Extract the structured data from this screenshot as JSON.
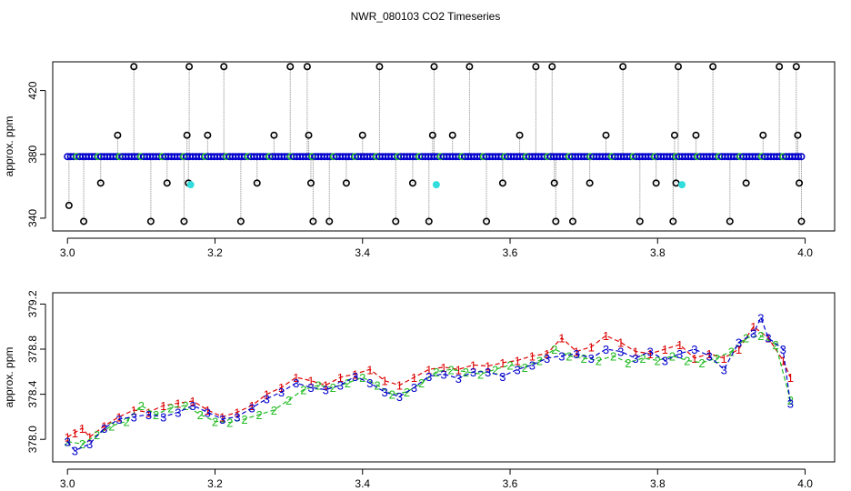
{
  "title": "NWR_080103  CO2 Timeseries",
  "chart_data": [
    {
      "type": "scatter",
      "ylabel": "approx. ppm",
      "xlim": [
        2.98,
        4.04
      ],
      "ylim": [
        332,
        438
      ],
      "xticks": [
        3.0,
        3.2,
        3.4,
        3.6,
        3.8,
        4.0
      ],
      "yticks": [
        340,
        380,
        420
      ],
      "tick_labels_x": [
        "3.0",
        "3.2",
        "3.4",
        "3.6",
        "3.8",
        "4.0"
      ],
      "tick_labels_y": [
        "340",
        "380",
        "420"
      ],
      "baseline": 378.6,
      "colors": {
        "baseline": "#0000cc",
        "accent": "#22bb22",
        "highlight": "#33dddd",
        "spike": "#000000",
        "connector": "#888888"
      },
      "spikes": [
        {
          "x": 3.002,
          "y": 348
        },
        {
          "x": 3.022,
          "y": 338
        },
        {
          "x": 3.045,
          "y": 362
        },
        {
          "x": 3.068,
          "y": 392
        },
        {
          "x": 3.09,
          "y": 435
        },
        {
          "x": 3.113,
          "y": 338
        },
        {
          "x": 3.135,
          "y": 362
        },
        {
          "x": 3.158,
          "y": 338
        },
        {
          "x": 3.162,
          "y": 392
        },
        {
          "x": 3.164,
          "y": 362
        },
        {
          "x": 3.165,
          "y": 435
        },
        {
          "x": 3.19,
          "y": 392
        },
        {
          "x": 3.212,
          "y": 435
        },
        {
          "x": 3.235,
          "y": 338
        },
        {
          "x": 3.257,
          "y": 362
        },
        {
          "x": 3.28,
          "y": 392
        },
        {
          "x": 3.302,
          "y": 435
        },
        {
          "x": 3.325,
          "y": 435
        },
        {
          "x": 3.327,
          "y": 392
        },
        {
          "x": 3.33,
          "y": 362
        },
        {
          "x": 3.333,
          "y": 338
        },
        {
          "x": 3.355,
          "y": 338
        },
        {
          "x": 3.378,
          "y": 362
        },
        {
          "x": 3.4,
          "y": 392
        },
        {
          "x": 3.423,
          "y": 435
        },
        {
          "x": 3.445,
          "y": 338
        },
        {
          "x": 3.468,
          "y": 362
        },
        {
          "x": 3.49,
          "y": 338
        },
        {
          "x": 3.495,
          "y": 392
        },
        {
          "x": 3.497,
          "y": 435
        },
        {
          "x": 3.522,
          "y": 392
        },
        {
          "x": 3.545,
          "y": 435
        },
        {
          "x": 3.568,
          "y": 338
        },
        {
          "x": 3.59,
          "y": 362
        },
        {
          "x": 3.613,
          "y": 392
        },
        {
          "x": 3.635,
          "y": 435
        },
        {
          "x": 3.657,
          "y": 435
        },
        {
          "x": 3.66,
          "y": 362
        },
        {
          "x": 3.662,
          "y": 338
        },
        {
          "x": 3.685,
          "y": 338
        },
        {
          "x": 3.708,
          "y": 362
        },
        {
          "x": 3.73,
          "y": 392
        },
        {
          "x": 3.753,
          "y": 435
        },
        {
          "x": 3.776,
          "y": 338
        },
        {
          "x": 3.798,
          "y": 362
        },
        {
          "x": 3.821,
          "y": 338
        },
        {
          "x": 3.823,
          "y": 392
        },
        {
          "x": 3.825,
          "y": 362
        },
        {
          "x": 3.828,
          "y": 435
        },
        {
          "x": 3.852,
          "y": 392
        },
        {
          "x": 3.875,
          "y": 435
        },
        {
          "x": 3.898,
          "y": 338
        },
        {
          "x": 3.92,
          "y": 362
        },
        {
          "x": 3.943,
          "y": 392
        },
        {
          "x": 3.965,
          "y": 435
        },
        {
          "x": 3.988,
          "y": 435
        },
        {
          "x": 3.99,
          "y": 392
        },
        {
          "x": 3.992,
          "y": 362
        },
        {
          "x": 3.995,
          "y": 338
        }
      ],
      "highlights": [
        {
          "x": 3.167,
          "y": 361
        },
        {
          "x": 3.5,
          "y": 361
        },
        {
          "x": 3.833,
          "y": 361
        }
      ]
    },
    {
      "type": "line",
      "ylabel": "approx. ppm",
      "xlim": [
        2.98,
        4.04
      ],
      "ylim": [
        377.8,
        379.3
      ],
      "xticks": [
        3.0,
        3.2,
        3.4,
        3.6,
        3.8,
        4.0
      ],
      "yticks": [
        378.0,
        378.4,
        378.8,
        379.2
      ],
      "tick_labels_x": [
        "3.0",
        "3.2",
        "3.4",
        "3.6",
        "3.8",
        "4.0"
      ],
      "tick_labels_y": [
        "378.0",
        "378.4",
        "378.8",
        "379.2"
      ],
      "series": [
        {
          "name": "1",
          "color": "#dd0000",
          "x": [
            3.0,
            3.01,
            3.02,
            3.03,
            3.05,
            3.07,
            3.09,
            3.11,
            3.13,
            3.15,
            3.17,
            3.19,
            3.21,
            3.23,
            3.25,
            3.27,
            3.29,
            3.31,
            3.33,
            3.35,
            3.37,
            3.39,
            3.41,
            3.43,
            3.45,
            3.47,
            3.49,
            3.51,
            3.53,
            3.55,
            3.57,
            3.59,
            3.61,
            3.63,
            3.65,
            3.67,
            3.69,
            3.71,
            3.73,
            3.75,
            3.77,
            3.79,
            3.81,
            3.83,
            3.85,
            3.87,
            3.89,
            3.91,
            3.93,
            3.95,
            3.97,
            3.98
          ],
          "y": [
            378.02,
            378.06,
            378.1,
            378.02,
            378.12,
            378.2,
            378.26,
            378.24,
            378.3,
            378.32,
            378.34,
            378.26,
            378.2,
            378.24,
            378.3,
            378.4,
            378.46,
            378.55,
            378.52,
            378.48,
            378.55,
            378.58,
            378.62,
            378.52,
            378.48,
            378.55,
            378.62,
            378.64,
            378.62,
            378.66,
            378.65,
            378.68,
            378.7,
            378.74,
            378.76,
            378.9,
            378.78,
            378.82,
            378.92,
            378.86,
            378.78,
            378.76,
            378.8,
            378.84,
            378.72,
            378.76,
            378.72,
            378.8,
            379.0,
            378.9,
            378.7,
            378.55
          ]
        },
        {
          "name": "2",
          "color": "#22bb22",
          "x": [
            3.0,
            3.02,
            3.04,
            3.06,
            3.08,
            3.1,
            3.12,
            3.14,
            3.16,
            3.18,
            3.2,
            3.22,
            3.24,
            3.26,
            3.28,
            3.3,
            3.32,
            3.34,
            3.36,
            3.38,
            3.4,
            3.42,
            3.44,
            3.46,
            3.48,
            3.5,
            3.52,
            3.54,
            3.56,
            3.58,
            3.6,
            3.62,
            3.64,
            3.66,
            3.68,
            3.7,
            3.72,
            3.74,
            3.76,
            3.78,
            3.8,
            3.82,
            3.84,
            3.86,
            3.88,
            3.9,
            3.92,
            3.94,
            3.96,
            3.98
          ],
          "y": [
            377.98,
            377.96,
            378.04,
            378.12,
            378.16,
            378.3,
            378.22,
            378.28,
            378.3,
            378.22,
            378.16,
            378.15,
            378.18,
            378.22,
            378.26,
            378.35,
            378.44,
            378.48,
            378.46,
            378.5,
            378.55,
            378.48,
            378.4,
            378.42,
            378.5,
            378.6,
            378.62,
            378.6,
            378.58,
            378.62,
            378.66,
            378.64,
            378.7,
            378.8,
            378.74,
            378.72,
            378.7,
            378.74,
            378.68,
            378.72,
            378.7,
            378.74,
            378.7,
            378.68,
            378.72,
            378.78,
            378.9,
            378.92,
            378.84,
            378.35
          ]
        },
        {
          "name": "3",
          "color": "#0000cc",
          "x": [
            3.0,
            3.01,
            3.03,
            3.05,
            3.07,
            3.09,
            3.11,
            3.13,
            3.15,
            3.17,
            3.19,
            3.21,
            3.23,
            3.25,
            3.27,
            3.29,
            3.31,
            3.33,
            3.35,
            3.37,
            3.39,
            3.41,
            3.43,
            3.45,
            3.47,
            3.49,
            3.51,
            3.53,
            3.55,
            3.57,
            3.59,
            3.61,
            3.63,
            3.65,
            3.67,
            3.69,
            3.71,
            3.73,
            3.75,
            3.77,
            3.79,
            3.81,
            3.83,
            3.85,
            3.87,
            3.89,
            3.91,
            3.93,
            3.94,
            3.95,
            3.97,
            3.98
          ],
          "y": [
            377.98,
            377.9,
            377.96,
            378.1,
            378.18,
            378.2,
            378.22,
            378.2,
            378.24,
            378.3,
            378.24,
            378.18,
            378.2,
            378.28,
            378.36,
            378.42,
            378.5,
            378.46,
            378.44,
            378.48,
            378.56,
            378.5,
            378.42,
            378.38,
            378.46,
            378.56,
            378.58,
            378.54,
            378.6,
            378.6,
            378.56,
            378.62,
            378.66,
            378.72,
            378.74,
            378.76,
            378.72,
            378.8,
            378.78,
            378.72,
            378.78,
            378.7,
            378.76,
            378.8,
            378.74,
            378.62,
            378.86,
            378.94,
            379.08,
            378.9,
            378.8,
            378.32
          ]
        }
      ]
    }
  ]
}
